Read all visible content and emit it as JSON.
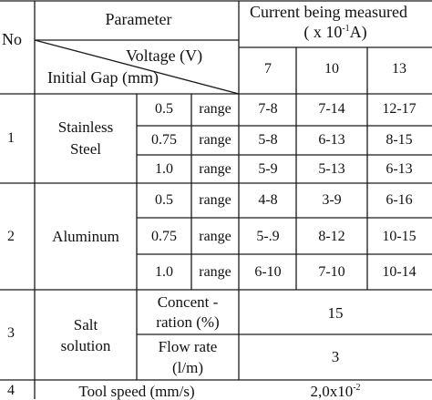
{
  "header": {
    "no": "No",
    "parameter": "Parameter",
    "current_line1": "Current being measured",
    "current_line2_pre": "( x 10",
    "current_line2_sup": "-1",
    "current_line2_post": "A)",
    "voltage": "Voltage (V)",
    "initial_gap": "Initial Gap (mm)",
    "voltages": [
      "7",
      "10",
      "13"
    ]
  },
  "rows": [
    {
      "no": "1",
      "material_line1": "Stainless",
      "material_line2": "Steel",
      "gaps": [
        {
          "gap": "0.5",
          "unit": "range",
          "values": [
            "7-8",
            "7-14",
            "12-17"
          ]
        },
        {
          "gap": "0.75",
          "unit": "range",
          "values": [
            "5-8",
            "6-13",
            "8-15"
          ]
        },
        {
          "gap": "1.0",
          "unit": "range",
          "values": [
            "5-9",
            "5-13",
            "6-13"
          ]
        }
      ]
    },
    {
      "no": "2",
      "material_line1": "Aluminum",
      "gaps": [
        {
          "gap": "0.5",
          "unit": "range",
          "values": [
            "4-8",
            "3-9",
            "6-16"
          ]
        },
        {
          "gap": "0.75",
          "unit": "range",
          "values": [
            "5-.9",
            "8-12",
            "10-15"
          ]
        },
        {
          "gap": "1.0",
          "unit": "range",
          "values": [
            "6-10",
            "7-10",
            "10-14"
          ]
        }
      ]
    }
  ],
  "salt": {
    "no": "3",
    "label_line1": "Salt",
    "label_line2": "solution",
    "concentration_line1": "Concent -",
    "concentration_line2": "ration (%)",
    "concentration_value": "15",
    "flow_line1": "Flow rate",
    "flow_line2": "(l/m)",
    "flow_value": "3"
  },
  "tool": {
    "no": "4",
    "label": "Tool speed (mm/s)",
    "value_pre": "2,0x10",
    "value_sup": "-2"
  }
}
